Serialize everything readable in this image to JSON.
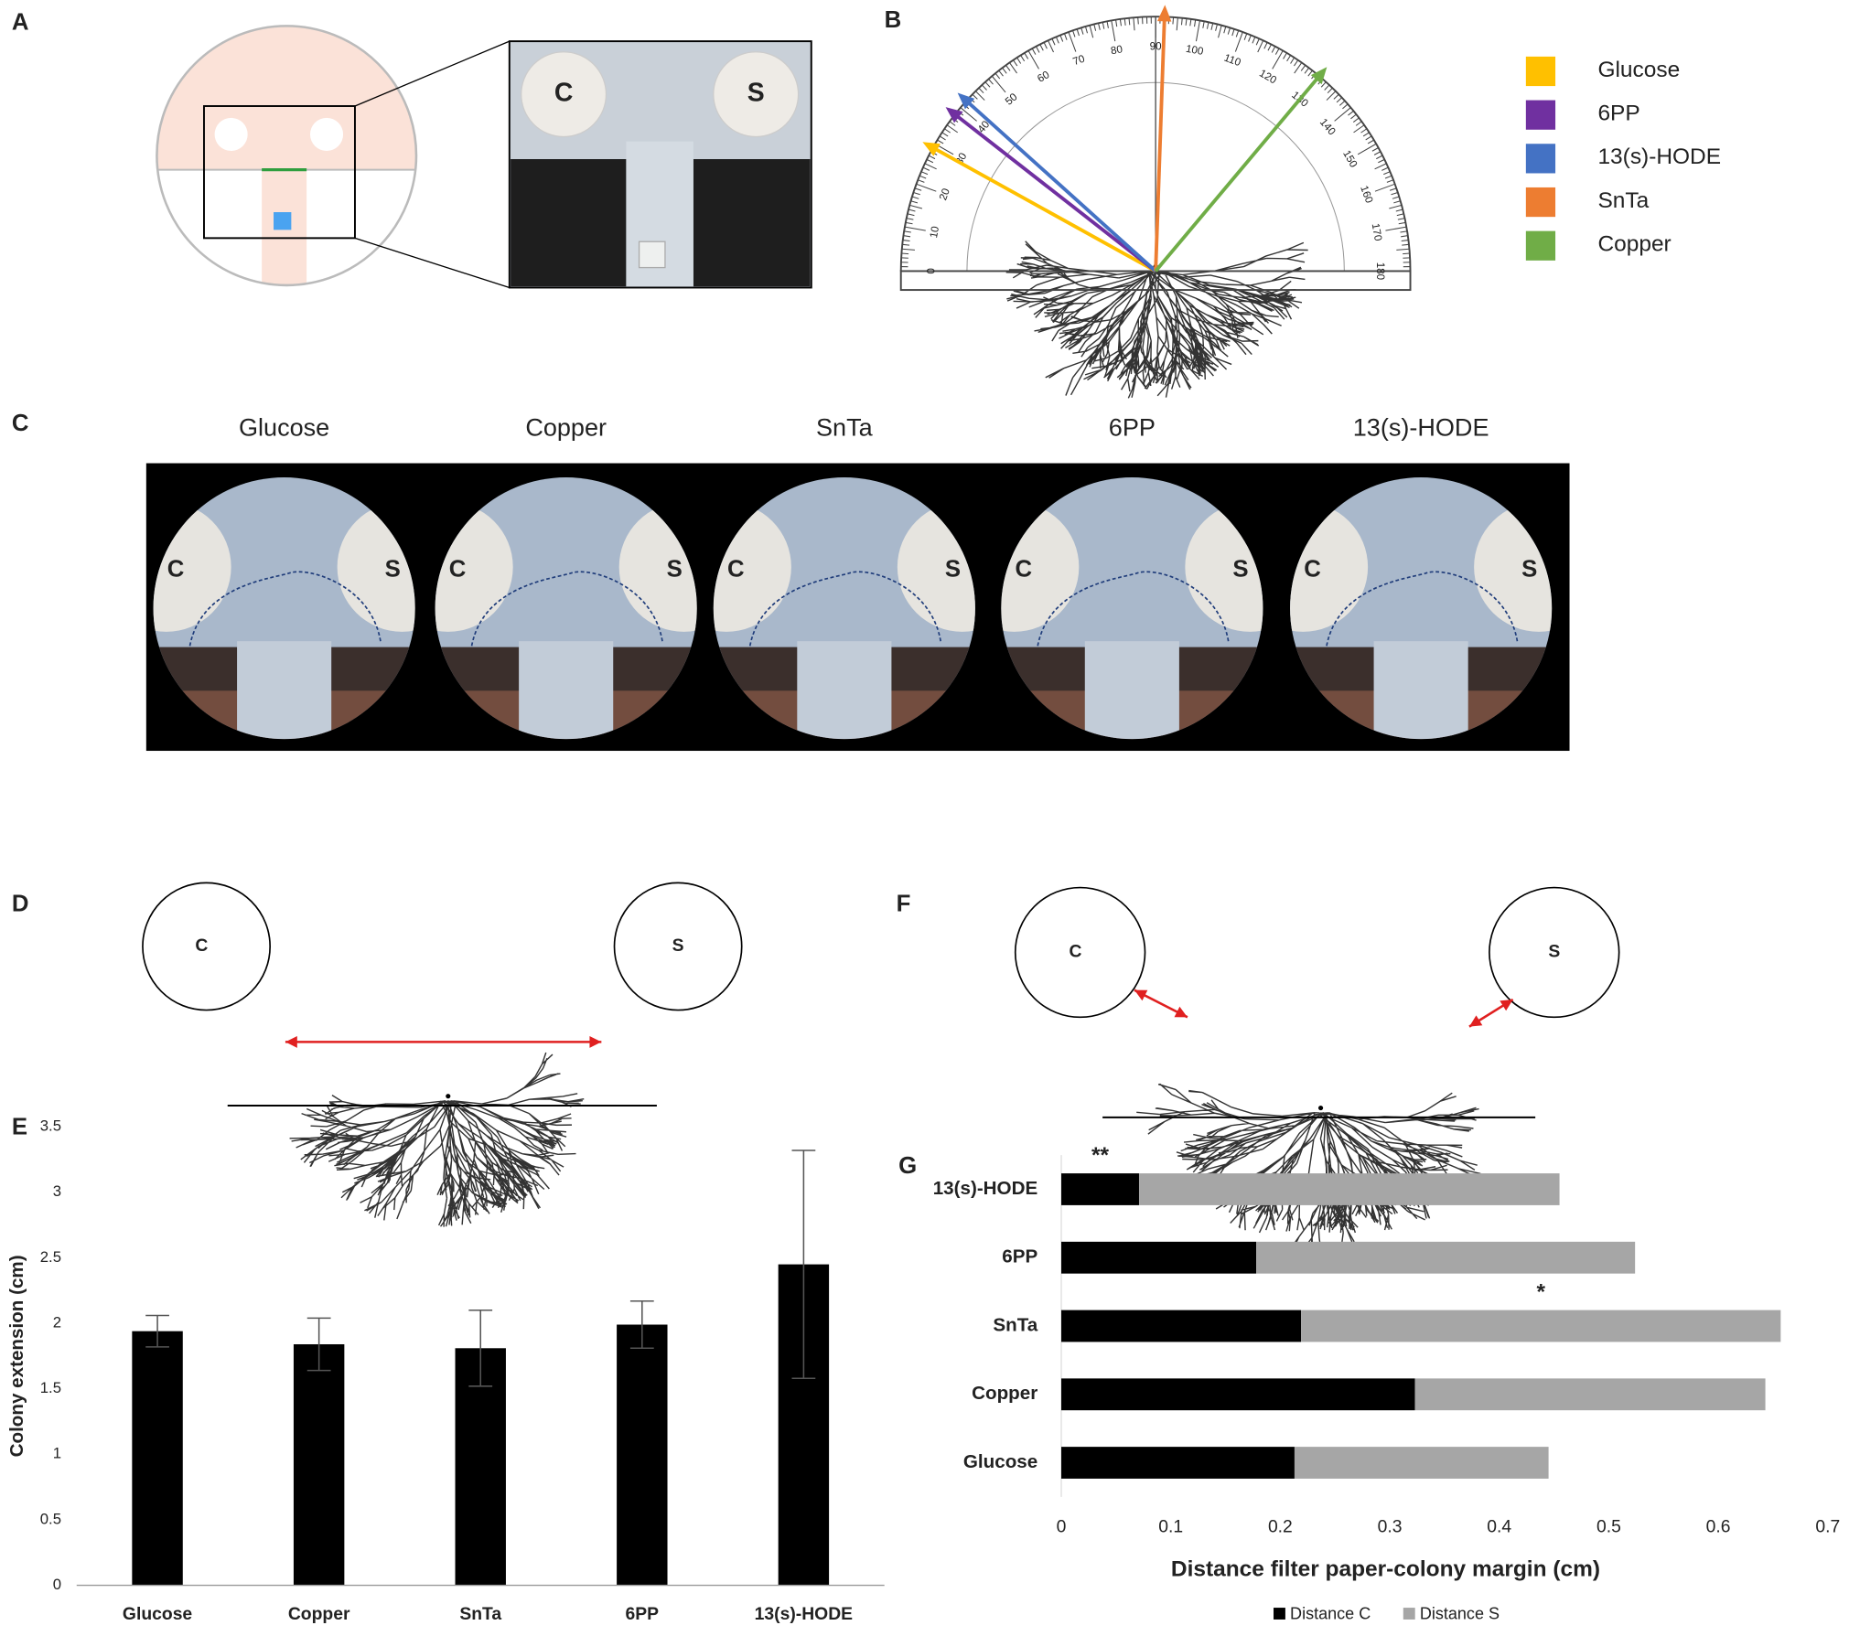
{
  "panel_labels": [
    "A",
    "B",
    "C",
    "D",
    "E",
    "F",
    "G"
  ],
  "panel_a": {
    "disc_labels": [
      "C",
      "S"
    ]
  },
  "panel_b": {
    "scale_labels": [
      0,
      10,
      20,
      30,
      40,
      50,
      60,
      70,
      80,
      90,
      100,
      110,
      120,
      130,
      140,
      150,
      160,
      170,
      180
    ],
    "legend": [
      {
        "name": "Glucose",
        "color": "#ffc000",
        "angle": 29
      },
      {
        "name": "6PP",
        "color": "#7030a0",
        "angle": 38
      },
      {
        "name": "13(s)-HODE",
        "color": "#4472c4",
        "angle": 42
      },
      {
        "name": "SnTa",
        "color": "#ed7d31",
        "angle": 92
      },
      {
        "name": "Copper",
        "color": "#70ad47",
        "angle": 130
      }
    ]
  },
  "panel_c": {
    "titles": [
      "Glucose",
      "Copper",
      "SnTa",
      "6PP",
      "13(s)-HODE"
    ],
    "disc_labels": [
      "C",
      "S"
    ]
  },
  "panel_d": {
    "disc_labels": [
      "C",
      "S"
    ]
  },
  "panel_f": {
    "disc_labels": [
      "C",
      "S"
    ]
  },
  "chart_data": [
    {
      "type": "bar",
      "ylabel": "Colony extension (cm)",
      "categories": [
        "Glucose",
        "Copper",
        "SnTa",
        "6PP",
        "13(s)-HODE"
      ],
      "values": [
        1.94,
        1.84,
        1.81,
        1.99,
        2.45
      ],
      "errors": [
        0.12,
        0.2,
        0.29,
        0.18,
        0.87
      ],
      "color": "#000000",
      "ylim": [
        0,
        3.5
      ],
      "yticks": [
        0,
        0.5,
        1,
        1.5,
        2,
        2.5,
        3,
        3.5
      ],
      "grid": false
    },
    {
      "type": "hbar_stacked",
      "xlabel": "Distance filter paper-colony margin (cm)",
      "categories": [
        "Glucose",
        "Copper",
        "SnTa",
        "6PP",
        "13(s)-HODE"
      ],
      "series": [
        {
          "name": "Distance C",
          "color": "#000000",
          "values": [
            0.213,
            0.323,
            0.219,
            0.178,
            0.071
          ]
        },
        {
          "name": "Distance S",
          "color": "#a6a6a6",
          "values": [
            0.232,
            0.32,
            0.438,
            0.346,
            0.384
          ]
        }
      ],
      "annotations": [
        {
          "text": "**",
          "category": "13(s)-HODE"
        },
        {
          "text": "*",
          "category": "SnTa"
        }
      ],
      "xlim": [
        0,
        0.7
      ],
      "xticks": [
        0,
        0.1,
        0.2,
        0.3,
        0.4,
        0.5,
        0.6,
        0.7
      ],
      "grid": false,
      "legend": "bottom"
    }
  ]
}
